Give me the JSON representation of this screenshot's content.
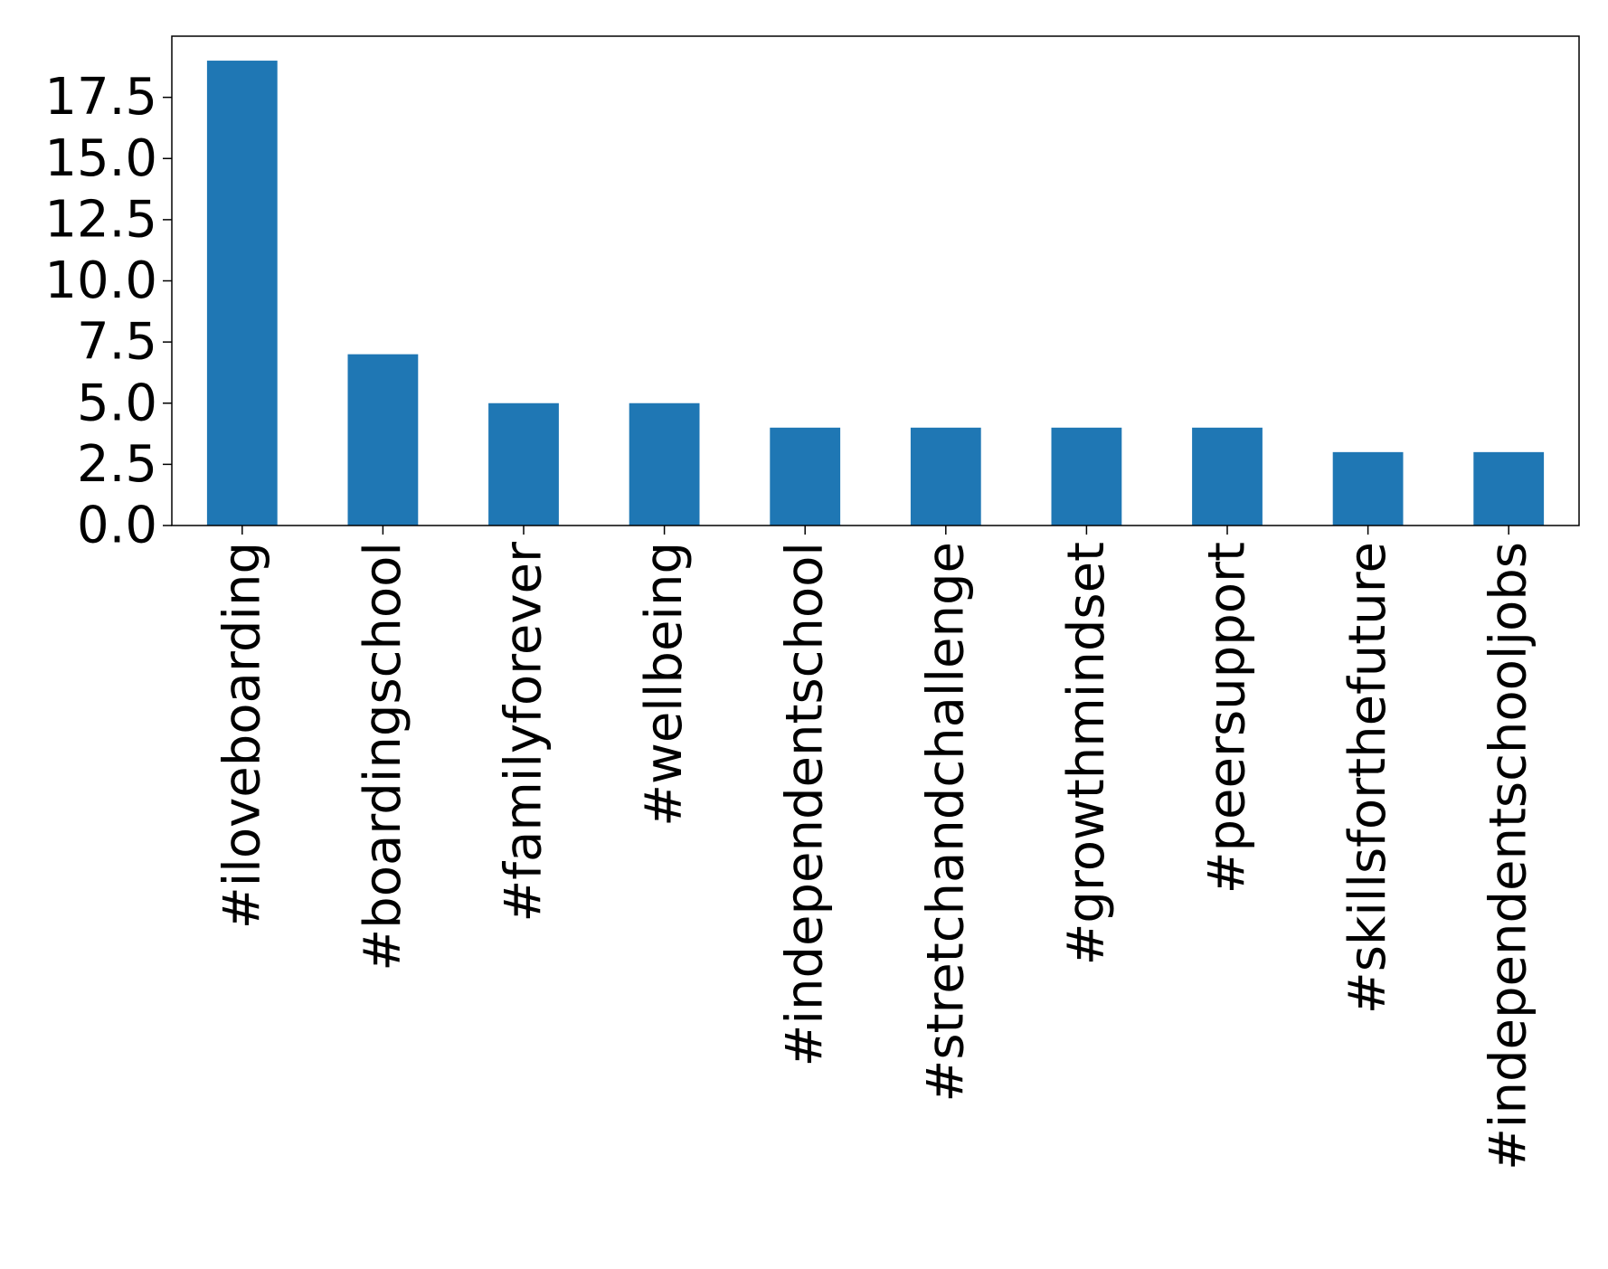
{
  "chart_data": {
    "type": "bar",
    "title": "",
    "xlabel": "",
    "ylabel": "",
    "categories": [
      "#iloveboarding",
      "#boardingschool",
      "#familyforever",
      "#wellbeing",
      "#independentschool",
      "#stretchandchallenge",
      "#growthmindset",
      "#peersupport",
      "#skillsforthefuture",
      "#independentschooljobs"
    ],
    "values": [
      19,
      7,
      5,
      5,
      4,
      4,
      4,
      4,
      3,
      3
    ],
    "ylim": [
      0,
      20
    ],
    "yticks": [
      0.0,
      2.5,
      5.0,
      7.5,
      10.0,
      12.5,
      15.0,
      17.5
    ],
    "ytick_labels": [
      "0.0",
      "2.5",
      "5.0",
      "7.5",
      "10.0",
      "12.5",
      "15.0",
      "17.5"
    ],
    "grid": false,
    "legend": "none",
    "colors": {
      "bar": "#1f77b4",
      "axes": "#000000",
      "background": "#ffffff"
    }
  }
}
